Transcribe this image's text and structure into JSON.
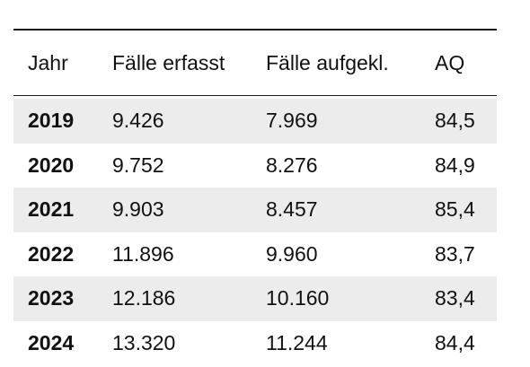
{
  "table": {
    "columns": [
      "Jahr",
      "Fälle erfasst",
      "Fälle aufgekl.",
      "AQ"
    ],
    "rows": [
      {
        "year": "2019",
        "recorded": "9.426",
        "solved": "7.969",
        "aq": "84,5"
      },
      {
        "year": "2020",
        "recorded": "9.752",
        "solved": "8.276",
        "aq": "84,9"
      },
      {
        "year": "2021",
        "recorded": "9.903",
        "solved": "8.457",
        "aq": "85,4"
      },
      {
        "year": "2022",
        "recorded": "11.896",
        "solved": "9.960",
        "aq": "83,7"
      },
      {
        "year": "2023",
        "recorded": "12.186",
        "solved": "10.160",
        "aq": "83,4"
      },
      {
        "year": "2024",
        "recorded": "13.320",
        "solved": "11.244",
        "aq": "84,4"
      }
    ]
  }
}
